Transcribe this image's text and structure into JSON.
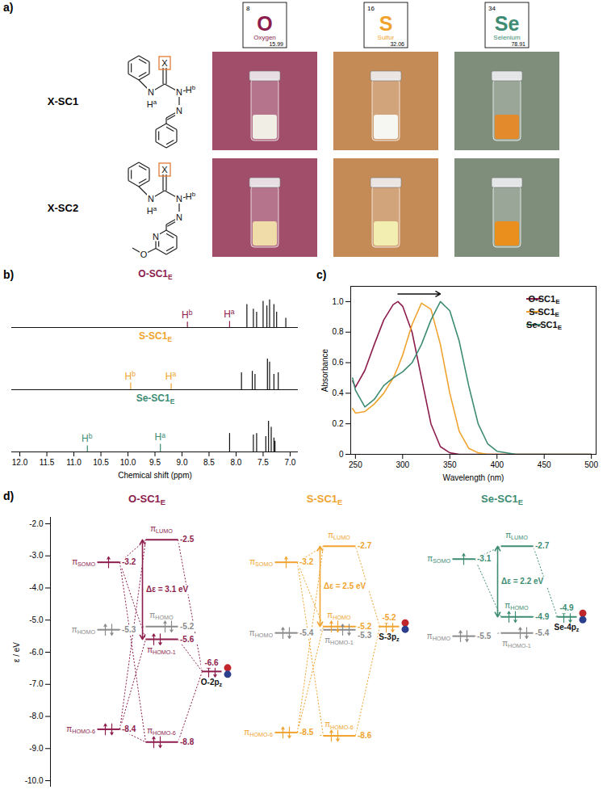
{
  "panel_a": {
    "letter": "a)",
    "elements": [
      {
        "number": 8,
        "symbol": "O",
        "name": "Oxygen",
        "mass": 15.99,
        "color": "#8c1d4d",
        "colors": [
          "#f1eee6",
          "#efdca8"
        ]
      },
      {
        "number": 16,
        "symbol": "S",
        "name": "Sulfur",
        "mass": 32.06,
        "color": "#f0a32e",
        "colors": [
          "#f6f6f2",
          "#f2eeb2"
        ]
      },
      {
        "number": 34,
        "symbol": "Se",
        "name": "Selenium",
        "mass": 78.91,
        "color": "#3d8c73",
        "colors": [
          "#e38a2c",
          "#ea8f1e"
        ]
      }
    ],
    "structures": [
      {
        "name": "X-SC1",
        "labels": [
          "X",
          "N",
          "H",
          "a",
          "N",
          "H",
          "b",
          "N"
        ]
      },
      {
        "name": "X-SC2",
        "labels": [
          "X",
          "N",
          "H",
          "a",
          "N",
          "H",
          "b",
          "N",
          "N",
          "O"
        ]
      }
    ]
  },
  "chart_data": [
    {
      "type": "spectrum",
      "letter": "b)",
      "x_label": "Chemical shift (ppm)",
      "xlim": [
        12.15,
        6.85
      ],
      "ylim": [
        0,
        1.05
      ],
      "tick_labels": "x",
      "xticks": [
        {
          "value": 12,
          "label": "12.0"
        },
        11.5,
        {
          "value": 11,
          "label": "11.0"
        },
        10.5,
        {
          "value": 10,
          "label": "10.0"
        },
        9.5,
        {
          "value": 9,
          "label": "9.0"
        },
        8.5,
        {
          "value": 8,
          "label": "8.0"
        },
        7.5,
        {
          "value": 7,
          "label": "7.0"
        }
      ],
      "series": [
        {
          "name": "O-SC1E",
          "color": "#8c1d4d",
          "peaks": [
            {
              "x": 8.9,
              "height": 0.18,
              "label": "Hb"
            },
            {
              "x": 8.12,
              "height": 0.2,
              "label": "Ha"
            },
            {
              "x": 7.8,
              "height": 0.75
            },
            {
              "x": 7.68,
              "height": 0.6
            },
            {
              "x": 7.62,
              "height": 0.5
            },
            {
              "x": 7.5,
              "height": 0.85
            },
            {
              "x": 7.43,
              "height": 0.7
            },
            {
              "x": 7.38,
              "height": 0.9
            },
            {
              "x": 7.3,
              "height": 0.75
            },
            {
              "x": 7.25,
              "height": 0.5
            },
            {
              "x": 7.08,
              "height": 0.3
            }
          ]
        },
        {
          "name": "S-SC1E",
          "color": "#f0a32e",
          "peaks": [
            {
              "x": 9.95,
              "height": 0.22,
              "label": "Hb"
            },
            {
              "x": 9.2,
              "height": 0.2,
              "label": "Ha"
            },
            {
              "x": 7.9,
              "height": 0.55
            },
            {
              "x": 7.7,
              "height": 0.6
            },
            {
              "x": 7.65,
              "height": 0.5
            },
            {
              "x": 7.42,
              "height": 1.0
            },
            {
              "x": 7.38,
              "height": 0.9
            },
            {
              "x": 7.3,
              "height": 0.5
            },
            {
              "x": 7.22,
              "height": 0.55
            }
          ]
        },
        {
          "name": "Se-SC1E",
          "color": "#3d8c73",
          "peaks": [
            {
              "x": 10.75,
              "height": 0.2,
              "label": "Hb"
            },
            {
              "x": 9.4,
              "height": 0.25,
              "label": "Ha"
            },
            {
              "x": 8.12,
              "height": 0.6
            },
            {
              "x": 7.68,
              "height": 0.55
            },
            {
              "x": 7.62,
              "height": 0.6
            },
            {
              "x": 7.45,
              "height": 0.5
            },
            {
              "x": 7.4,
              "height": 1.0
            },
            {
              "x": 7.35,
              "height": 0.8
            },
            {
              "x": 7.3,
              "height": 0.45
            },
            {
              "x": 7.28,
              "height": 0.35
            }
          ]
        }
      ]
    },
    {
      "type": "line",
      "letter": "c)",
      "x_label": "Wavelength (nm)",
      "y_label": "Absorbance",
      "xlim": [
        245,
        505
      ],
      "ylim": [
        0,
        1.1
      ],
      "xticks": [
        250,
        300,
        350,
        400,
        450,
        500
      ],
      "yticks": [
        0,
        0.2,
        0.4,
        0.6,
        0.8,
        {
          "value": 1,
          "label": "1.0"
        }
      ],
      "legend": "top-right",
      "x": [
        247,
        250,
        260,
        270,
        280,
        290,
        295,
        300,
        310,
        320,
        330,
        340,
        350,
        360,
        370,
        380,
        390,
        400,
        420,
        450,
        500
      ],
      "series": [
        {
          "name": "O-SC1E",
          "color": "#8c1d4d",
          "values": [
            0.48,
            0.44,
            0.55,
            0.72,
            0.88,
            0.98,
            1.0,
            0.97,
            0.8,
            0.5,
            0.2,
            0.05,
            0.01,
            0,
            0,
            0,
            0,
            0,
            0,
            0,
            0
          ]
        },
        {
          "name": "S-SC1E",
          "color": "#f0a32e",
          "values": [
            0.3,
            0.27,
            0.28,
            0.33,
            0.4,
            0.5,
            0.57,
            0.65,
            0.85,
            0.99,
            0.95,
            0.72,
            0.4,
            0.15,
            0.04,
            0.01,
            0,
            0,
            0,
            0,
            0
          ]
        },
        {
          "name": "Se-SC1E",
          "color": "#3d8c73",
          "values": [
            0.5,
            0.42,
            0.31,
            0.36,
            0.45,
            0.5,
            0.52,
            0.54,
            0.6,
            0.72,
            0.88,
            1.0,
            0.94,
            0.74,
            0.45,
            0.2,
            0.07,
            0.02,
            0,
            0,
            0
          ]
        }
      ]
    },
    {
      "type": "energy_diagram",
      "letter": "d)",
      "y_label": "ε / eV",
      "ylim": [
        -10.2,
        -1.8
      ],
      "tick_labels": "y",
      "yticks": [
        {
          "value": -2,
          "label": "-2.0"
        },
        {
          "value": -3,
          "label": "-3.0"
        },
        {
          "value": -4,
          "label": "-4.0"
        },
        {
          "value": -5,
          "label": "-5.0"
        },
        {
          "value": -6,
          "label": "-6.0"
        },
        {
          "value": -7,
          "label": "-7.0"
        },
        {
          "value": -8,
          "label": "-8.0"
        },
        {
          "value": -9,
          "label": "-9.0"
        },
        {
          "value": -10,
          "label": "-10.0"
        }
      ],
      "diagrams": [
        {
          "title": "O-SC1E",
          "color": "#8c1d4d",
          "fragment": [
            {
              "label": "πSOMO",
              "energy": -3.2,
              "electrons": 1,
              "color": "#8c1d4d"
            },
            {
              "label": "πHOMO",
              "energy": -5.3,
              "electrons": 2,
              "color": "#8a8a8a"
            },
            {
              "label": "πHOMO-6",
              "energy": -8.4,
              "electrons": 2,
              "color": "#8c1d4d"
            }
          ],
          "molecule": [
            {
              "label": "πLUMO",
              "energy": -2.5,
              "electrons": 0,
              "color": "#8c1d4d"
            },
            {
              "label": "πHOMO",
              "energy": -5.2,
              "electrons": 2,
              "color": "#8a8a8a"
            },
            {
              "label": "πHOMO-1",
              "energy": -5.6,
              "electrons": 2,
              "color": "#8c1d4d"
            },
            {
              "label": "πHOMO-6",
              "energy": -8.8,
              "electrons": 2,
              "color": "#8c1d4d"
            }
          ],
          "atom": {
            "label": "O-2pz",
            "energy": -6.6,
            "electrons": 2
          },
          "gap": {
            "value": 3.1,
            "label": "Δε = 3.1 eV"
          }
        },
        {
          "title": "S-SC1E",
          "color": "#f0a32e",
          "fragment": [
            {
              "label": "πSOMO",
              "energy": -3.2,
              "electrons": 1,
              "color": "#f0a32e"
            },
            {
              "label": "πHOMO",
              "energy": -5.4,
              "electrons": 2,
              "color": "#8a8a8a"
            },
            {
              "label": "πHOMO-6",
              "energy": -8.5,
              "electrons": 2,
              "color": "#f0a32e"
            }
          ],
          "molecule": [
            {
              "label": "πLUMO",
              "energy": -2.7,
              "electrons": 0,
              "color": "#f0a32e"
            },
            {
              "label": "πHOMO",
              "energy": -5.2,
              "electrons": 2,
              "color": "#f0a32e"
            },
            {
              "label": "πHOMO-1",
              "energy": -5.3,
              "electrons": 2,
              "color": "#8a8a8a"
            },
            {
              "label": "πHOMO-6",
              "energy": -8.6,
              "electrons": 2,
              "color": "#f0a32e"
            }
          ],
          "atom": {
            "label": "S-3pz",
            "energy": -5.2,
            "electrons": 2
          },
          "gap": {
            "value": 2.5,
            "label": "Δε = 2.5 eV"
          }
        },
        {
          "title": "Se-SC1E",
          "color": "#3d8c73",
          "fragment": [
            {
              "label": "πSOMO",
              "energy": -3.1,
              "electrons": 1,
              "color": "#3d8c73"
            },
            {
              "label": "πHOMO",
              "energy": -5.5,
              "electrons": 2,
              "color": "#8a8a8a"
            }
          ],
          "molecule": [
            {
              "label": "πLUMO",
              "energy": -2.7,
              "electrons": 0,
              "color": "#3d8c73"
            },
            {
              "label": "πHOMO",
              "energy": -4.9,
              "electrons": 2,
              "color": "#3d8c73"
            },
            {
              "label": "πHOMO-1",
              "energy": -5.4,
              "electrons": 2,
              "color": "#8a8a8a"
            }
          ],
          "atom": {
            "label": "Se-4pz",
            "energy": -4.9,
            "electrons": 2
          },
          "gap": {
            "value": 2.2,
            "label": "Δε = 2.2 eV"
          }
        }
      ]
    }
  ]
}
